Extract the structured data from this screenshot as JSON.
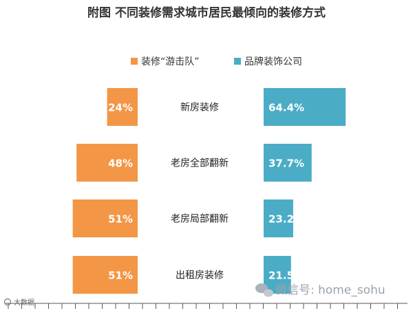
{
  "chart_data": {
    "type": "bar",
    "orientation": "horizontal-butterfly",
    "title": "附图 不同装修需求城市居民最倾向的装修方式",
    "legend_position": "top-center",
    "categories": [
      "新房装修",
      "老房全部翻新",
      "老房局部翻新",
      "出租房装修"
    ],
    "series": [
      {
        "name": "装修“游击队”",
        "color": "#f39646",
        "values": [
          24,
          48,
          51,
          51
        ],
        "labels": [
          "24%",
          "48%",
          "51%",
          "51%"
        ]
      },
      {
        "name": "品牌装饰公司",
        "color": "#4bacc6",
        "values": [
          64.4,
          37.7,
          23.2,
          21.5
        ],
        "labels": [
          "64.4%",
          "37.7%",
          "23.2",
          "21.5"
        ]
      }
    ],
    "grid": false
  },
  "watermark": {
    "wechat": "微信号: home_sohu",
    "corner": "大数据"
  }
}
